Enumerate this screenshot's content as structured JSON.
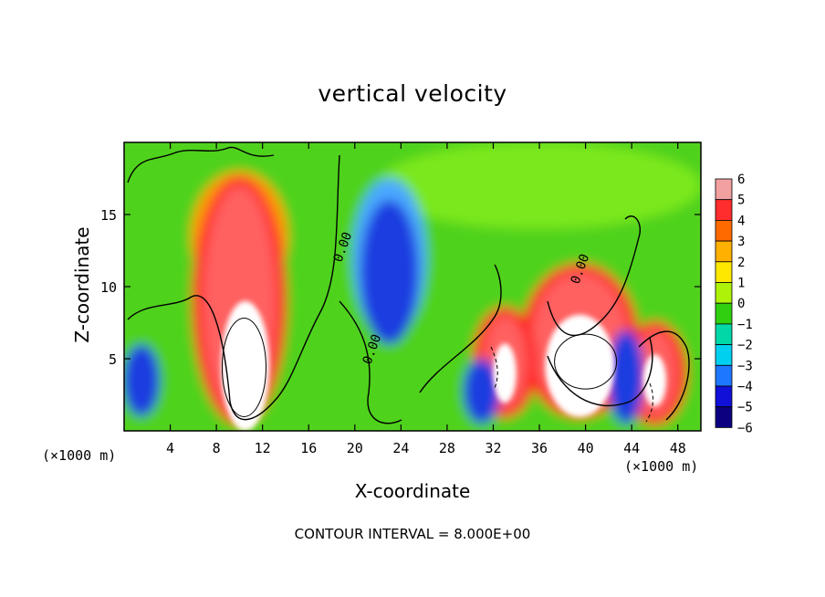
{
  "chart_data": {
    "type": "heatmap",
    "title": "vertical velocity",
    "xlabel": "X-coordinate",
    "ylabel": "Z-coordinate",
    "x_unit_left": "(×1000 m)",
    "x_unit_right": "(×1000 m)",
    "xlim": [
      0,
      50
    ],
    "ylim": [
      0,
      20
    ],
    "x_ticks": [
      4,
      8,
      12,
      16,
      20,
      24,
      28,
      32,
      36,
      40,
      44,
      48
    ],
    "y_ticks": [
      5,
      10,
      15
    ],
    "colorbar": {
      "levels": [
        6,
        5,
        4,
        3,
        2,
        1,
        0,
        -1,
        -2,
        -3,
        -4,
        -5,
        -6
      ],
      "colors": [
        "#f2a0a0",
        "#ff2d2d",
        "#ff6a00",
        "#ffb000",
        "#ffe800",
        "#aef20a",
        "#30d010",
        "#00d8a8",
        "#00d0f0",
        "#1e78ff",
        "#1010d8",
        "#0a0080",
        "#6a00b8"
      ]
    },
    "contour_labels": [
      "0.00",
      "0.00",
      "0.00"
    ],
    "features": [
      {
        "kind": "updraft",
        "x_center": 10,
        "z_bottom": 1,
        "z_top": 17,
        "core_x": 10.5,
        "core_z": 4.5
      },
      {
        "kind": "updraft",
        "x_center": 39.5,
        "z_bottom": 1.5,
        "z_top": 11,
        "core_x": 39.5,
        "core_z": 4.5
      },
      {
        "kind": "updraft",
        "x_center": 33,
        "z_bottom": 1.5,
        "z_top": 8,
        "core_x": 33,
        "core_z": 4
      },
      {
        "kind": "updraft",
        "x_center": 46,
        "z_bottom": 1,
        "z_top": 7,
        "core_x": 46,
        "core_z": 3.5
      },
      {
        "kind": "downdraft",
        "x_center": 23,
        "z_bottom": 6,
        "z_top": 16
      },
      {
        "kind": "downdraft",
        "x_center": 1.5,
        "z_bottom": 1,
        "z_top": 6
      },
      {
        "kind": "downdraft",
        "x_center": 31,
        "z_bottom": 0.5,
        "z_top": 5
      },
      {
        "kind": "downdraft",
        "x_center": 43.5,
        "z_bottom": 0.5,
        "z_top": 7
      }
    ],
    "footer": "CONTOUR INTERVAL = 8.000E+00"
  }
}
